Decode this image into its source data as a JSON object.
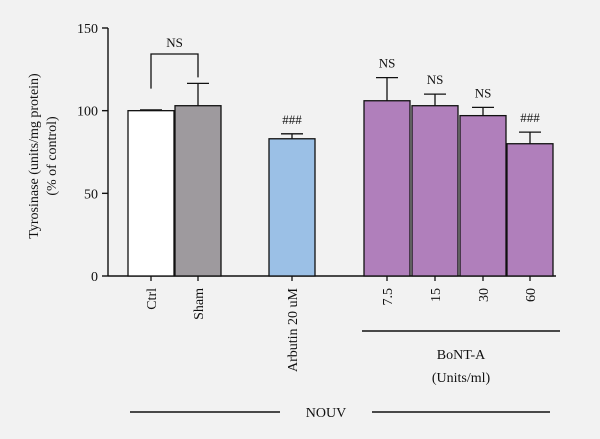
{
  "chart_data": {
    "type": "bar",
    "ylabel": "Tyrosinase (units/mg protein)",
    "ylabel_sub": "(% of control)",
    "ylim": [
      0,
      150
    ],
    "yticks": [
      0,
      50,
      100,
      150
    ],
    "grid": false,
    "bars": [
      {
        "label": "Ctrl",
        "value": 100,
        "error": 0.5,
        "color": "#ffffff",
        "annotation": ""
      },
      {
        "label": "Sham",
        "value": 103,
        "error": 13.5,
        "color": "#9e9a9e",
        "annotation": ""
      },
      {
        "label": "Arbutin 20 uM",
        "value": 83,
        "error": 3,
        "color": "#9bc0e6",
        "annotation": "###"
      },
      {
        "label": "7.5",
        "value": 106,
        "error": 14,
        "color": "#b07fbb",
        "annotation": "NS"
      },
      {
        "label": "15",
        "value": 103,
        "error": 7,
        "color": "#b07fbb",
        "annotation": "NS"
      },
      {
        "label": "30",
        "value": 97,
        "error": 5,
        "color": "#b07fbb",
        "annotation": "NS"
      },
      {
        "label": "60",
        "value": 80,
        "error": 7,
        "color": "#b07fbb",
        "annotation": "###"
      }
    ],
    "comparison_bracket": {
      "between": [
        "Ctrl",
        "Sham"
      ],
      "label": "NS"
    },
    "group_labels": {
      "botox_line1": "BoNT-A",
      "botox_line2": "(Units/ml)",
      "nouv": "NOUV"
    }
  }
}
